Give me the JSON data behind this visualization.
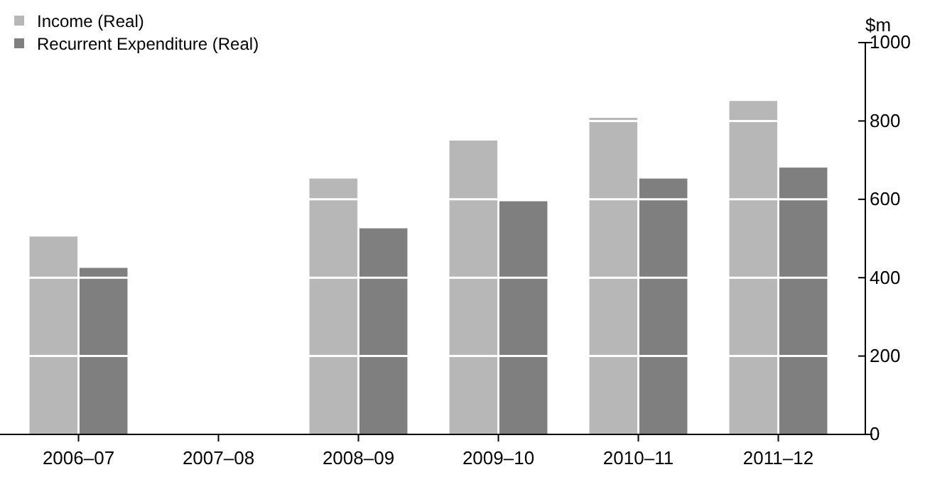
{
  "chart_data": {
    "type": "bar",
    "ylabel": "$m",
    "categories": [
      "2006–07",
      "2007–08",
      "2008–09",
      "2009–10",
      "2010–11",
      "2011–12"
    ],
    "series": [
      {
        "name": "Income (Real)",
        "color": "#b7b7b7",
        "values": [
          505,
          null,
          653,
          750,
          808,
          851
        ]
      },
      {
        "name": "Recurrent Expenditure (Real)",
        "color": "#7f7f7f",
        "values": [
          425,
          null,
          526,
          595,
          653,
          681
        ]
      }
    ],
    "ylim": [
      0,
      1000
    ],
    "yticks": [
      0,
      200,
      400,
      600,
      800,
      1000
    ],
    "grid": "y",
    "legend": "top left"
  }
}
